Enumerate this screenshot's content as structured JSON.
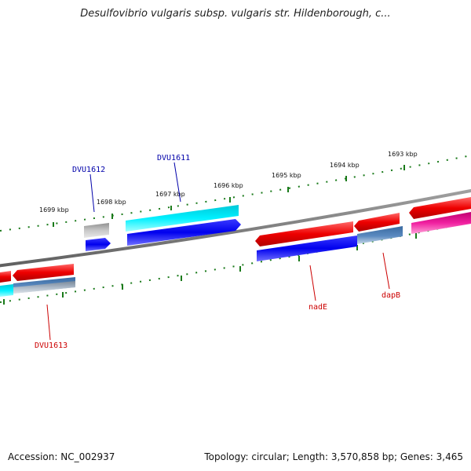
{
  "title": "Desulfovibrio vulgaris subsp. vulgaris str. Hildenborough, c...",
  "footer": {
    "accession": "Accession: NC_002937",
    "summary": "Topology: circular; Length: 3,570,858 bp; Genes: 3,465"
  },
  "ruler_labels": [
    "1699 kbp",
    "1698 kbp",
    "1697 kbp",
    "1696 kbp",
    "1695 kbp",
    "1694 kbp",
    "1693 kbp"
  ],
  "gene_labels": [
    {
      "text": "DVU1612",
      "strand": "forward"
    },
    {
      "text": "DVU1611",
      "strand": "forward"
    },
    {
      "text": "DVU1613",
      "strand": "reverse"
    },
    {
      "text": "nadE",
      "strand": "reverse"
    },
    {
      "text": "dapB",
      "strand": "reverse"
    }
  ],
  "colors": {
    "forward_label": "#0000aa",
    "reverse_label": "#cc0000",
    "ruler_tick": "#1a7a1a",
    "backbone": "#808080",
    "cds_red": "#ee0000",
    "cds_blue": "#0000ee",
    "cds_cyan": "#00e0f0",
    "cds_steel": "#4a7ab0",
    "cds_magenta": "#e01090",
    "cds_gray": "#b8b8b8"
  }
}
